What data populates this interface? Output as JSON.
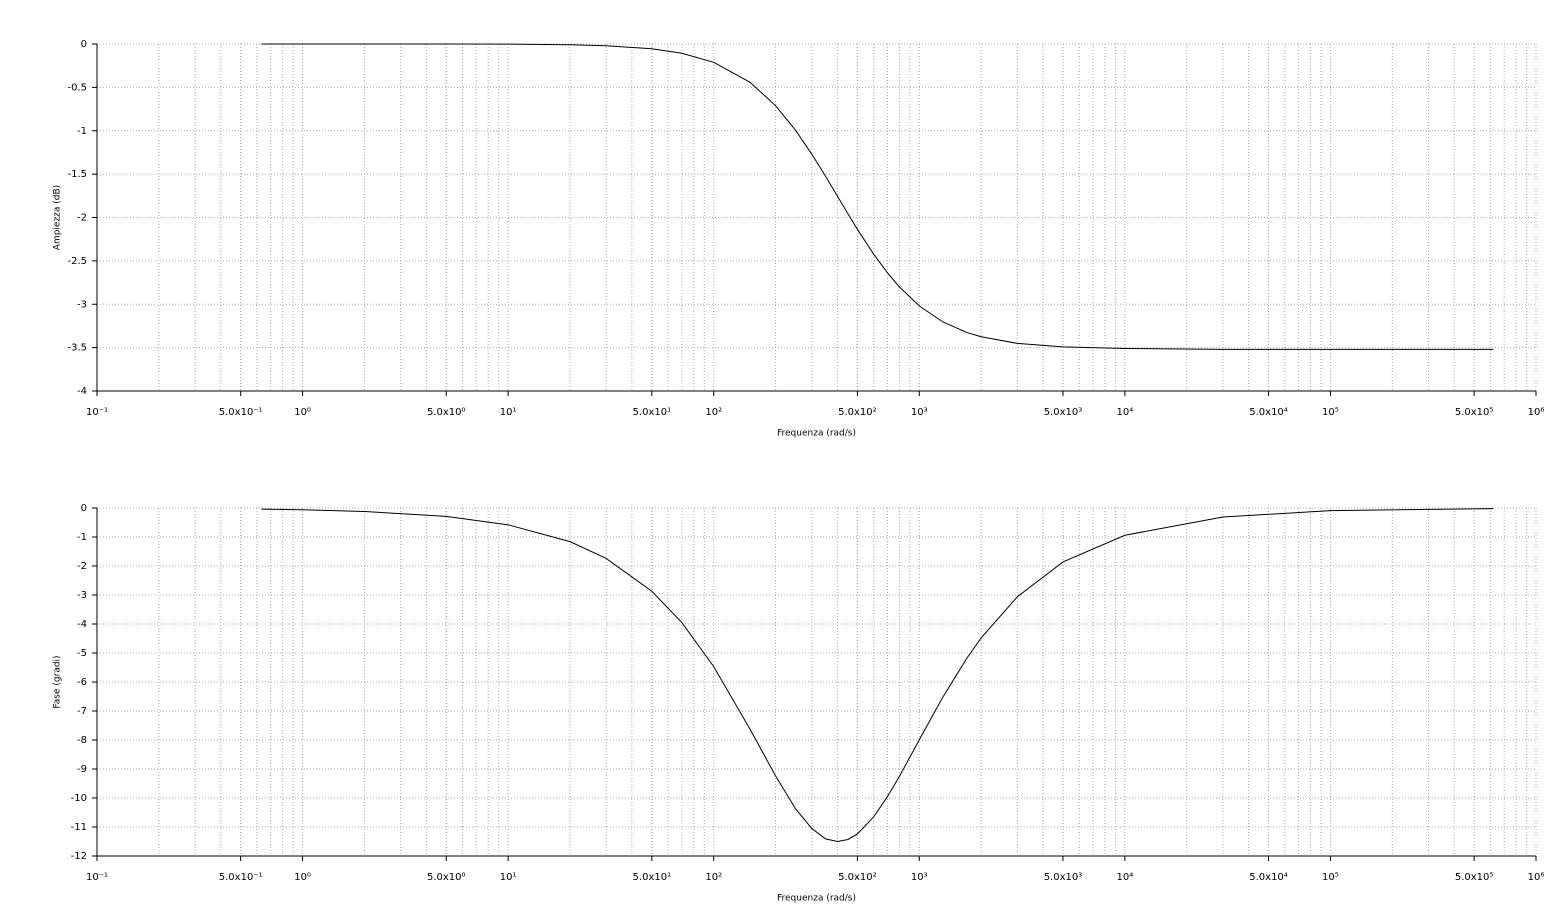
{
  "chart_data": [
    {
      "type": "line",
      "xlabel": "Frequenza (rad/s)",
      "ylabel": "Ampiezza (dB)",
      "xscale": "log",
      "grid": true,
      "xlim": [
        0.1,
        1000000
      ],
      "ylim": [
        -4,
        0
      ],
      "xticks": [
        {
          "value": 0.1,
          "label": "10⁻¹"
        },
        {
          "value": 0.5,
          "label": "5.0x10⁻¹"
        },
        {
          "value": 1,
          "label": "10⁰"
        },
        {
          "value": 5,
          "label": "5.0x10⁰"
        },
        {
          "value": 10,
          "label": "10¹"
        },
        {
          "value": 50,
          "label": "5.0x10¹"
        },
        {
          "value": 100,
          "label": "10²"
        },
        {
          "value": 500,
          "label": "5.0x10²"
        },
        {
          "value": 1000,
          "label": "10³"
        },
        {
          "value": 5000,
          "label": "5.0x10³"
        },
        {
          "value": 10000,
          "label": "10⁴"
        },
        {
          "value": 50000,
          "label": "5.0x10⁴"
        },
        {
          "value": 100000,
          "label": "10⁵"
        },
        {
          "value": 500000,
          "label": "5.0x10⁵"
        },
        {
          "value": 1000000,
          "label": "10⁶"
        }
      ],
      "yticks": [
        0,
        -0.5,
        -1,
        -1.5,
        -2,
        -2.5,
        -3,
        -3.5,
        -4
      ],
      "x": [
        0.63,
        1,
        2,
        5,
        10,
        20,
        30,
        50,
        70,
        100,
        150,
        200,
        250,
        300,
        350,
        400,
        450,
        500,
        600,
        700,
        800,
        1000,
        1300,
        1700,
        2000,
        3000,
        5000,
        10000,
        30000,
        100000,
        620000
      ],
      "series": [
        {
          "color": "#000000",
          "values": [
            0,
            0,
            0,
            0,
            -0.002,
            -0.009,
            -0.02,
            -0.055,
            -0.107,
            -0.211,
            -0.44,
            -0.711,
            -0.994,
            -1.27,
            -1.525,
            -1.755,
            -1.958,
            -2.136,
            -2.423,
            -2.638,
            -2.8,
            -3.019,
            -3.203,
            -3.325,
            -3.375,
            -3.451,
            -3.491,
            -3.51,
            -3.52,
            -3.52,
            -3.52
          ]
        }
      ]
    },
    {
      "type": "line",
      "xlabel": "Frequenza (rad/s)",
      "ylabel": "Fase (gradi)",
      "xscale": "log",
      "grid": true,
      "xlim": [
        0.1,
        1000000
      ],
      "ylim": [
        -12,
        0
      ],
      "xticks": [
        {
          "value": 0.1,
          "label": "10⁻¹"
        },
        {
          "value": 0.5,
          "label": "5.0x10⁻¹"
        },
        {
          "value": 1,
          "label": "10⁰"
        },
        {
          "value": 5,
          "label": "5.0x10⁰"
        },
        {
          "value": 10,
          "label": "10¹"
        },
        {
          "value": 50,
          "label": "5.0x10¹"
        },
        {
          "value": 100,
          "label": "10²"
        },
        {
          "value": 500,
          "label": "5.0x10²"
        },
        {
          "value": 1000,
          "label": "10³"
        },
        {
          "value": 5000,
          "label": "5.0x10³"
        },
        {
          "value": 10000,
          "label": "10⁴"
        },
        {
          "value": 50000,
          "label": "5.0x10⁴"
        },
        {
          "value": 100000,
          "label": "10⁵"
        },
        {
          "value": 500000,
          "label": "5.0x10⁵"
        },
        {
          "value": 1000000,
          "label": "10⁶"
        }
      ],
      "yticks": [
        0,
        -1,
        -2,
        -3,
        -4,
        -5,
        -6,
        -7,
        -8,
        -9,
        -10,
        -11,
        -12
      ],
      "x": [
        0.63,
        1,
        2,
        5,
        10,
        20,
        30,
        50,
        70,
        100,
        150,
        200,
        250,
        300,
        350,
        400,
        450,
        500,
        600,
        700,
        800,
        1000,
        1300,
        1700,
        2000,
        3000,
        5000,
        10000,
        30000,
        100000,
        620000
      ],
      "series": [
        {
          "color": "#000000",
          "values": [
            -0.04,
            -0.06,
            -0.12,
            -0.29,
            -0.58,
            -1.16,
            -1.74,
            -2.87,
            -3.95,
            -5.47,
            -7.62,
            -9.24,
            -10.37,
            -11.05,
            -11.41,
            -11.5,
            -11.43,
            -11.24,
            -10.65,
            -9.95,
            -9.26,
            -7.99,
            -6.53,
            -5.19,
            -4.48,
            -3.06,
            -1.86,
            -0.94,
            -0.31,
            -0.09,
            -0.02
          ]
        }
      ]
    }
  ]
}
